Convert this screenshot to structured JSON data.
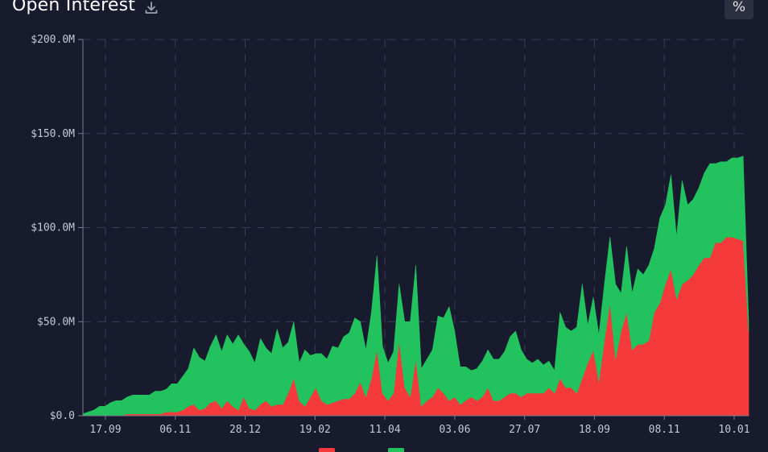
{
  "header": {
    "title": "Open Interest",
    "download_icon": "download-icon",
    "percent_button_label": "%"
  },
  "colors": {
    "background": "#181b2e",
    "short": "#f43a3a",
    "long": "#22c35e",
    "grid": "#3a3d52",
    "text": "#c5c8d6"
  },
  "chart_data": {
    "type": "area",
    "stacked": true,
    "title": "Open Interest",
    "xlabel": "",
    "ylabel": "",
    "ylim": [
      0,
      200
    ],
    "unit": "$M",
    "grid": true,
    "y_ticks": [
      {
        "value": 0,
        "label": "$0.0"
      },
      {
        "value": 50,
        "label": "$50.0M"
      },
      {
        "value": 100,
        "label": "$100.0M"
      },
      {
        "value": 150,
        "label": "$150.0M"
      },
      {
        "value": 200,
        "label": "$200.0M"
      }
    ],
    "x_ticks": [
      "17.09",
      "06.11",
      "28.12",
      "19.02",
      "11.04",
      "03.06",
      "27.07",
      "18.09",
      "08.11",
      "10.01"
    ],
    "series": [
      {
        "color": "#f43a3a",
        "values": [
          0,
          0,
          0,
          0,
          0,
          0,
          0,
          0,
          1,
          1,
          1,
          1,
          1,
          1,
          1,
          2,
          2,
          2,
          3,
          5,
          6,
          3,
          4,
          7,
          8,
          4,
          8,
          5,
          3,
          10,
          4,
          3,
          6,
          8,
          5,
          6,
          6,
          12,
          20,
          8,
          5,
          10,
          15,
          8,
          6,
          7,
          8,
          9,
          9,
          12,
          18,
          10,
          20,
          35,
          12,
          8,
          12,
          40,
          15,
          10,
          30,
          5,
          8,
          10,
          15,
          12,
          8,
          10,
          6,
          8,
          10,
          8,
          10,
          15,
          8,
          8,
          10,
          12,
          12,
          10,
          12,
          12,
          12,
          12,
          15,
          12,
          20,
          15,
          15,
          12,
          20,
          28,
          35,
          18,
          40,
          60,
          30,
          45,
          55,
          35,
          38,
          38,
          40,
          55,
          60,
          70,
          78,
          62,
          70,
          72,
          75,
          80,
          84,
          84,
          92,
          92,
          95,
          95,
          94,
          93,
          45
        ]
      },
      {
        "color": "#22c35e",
        "values": [
          1,
          2,
          3,
          5,
          5,
          7,
          8,
          8,
          9,
          10,
          10,
          10,
          10,
          12,
          12,
          12,
          15,
          15,
          18,
          20,
          30,
          28,
          25,
          30,
          35,
          30,
          35,
          33,
          40,
          28,
          30,
          25,
          35,
          28,
          28,
          40,
          30,
          27,
          30,
          20,
          30,
          22,
          18,
          25,
          24,
          30,
          28,
          33,
          35,
          40,
          32,
          25,
          35,
          50,
          25,
          20,
          22,
          30,
          35,
          40,
          50,
          20,
          22,
          25,
          38,
          40,
          50,
          35,
          20,
          18,
          14,
          17,
          19,
          20,
          22,
          22,
          24,
          30,
          33,
          25,
          18,
          16,
          18,
          15,
          14,
          12,
          35,
          32,
          30,
          35,
          50,
          20,
          28,
          25,
          30,
          35,
          40,
          20,
          35,
          30,
          40,
          37,
          40,
          34,
          45,
          42,
          50,
          33,
          55,
          40,
          40,
          41,
          45,
          50,
          42,
          43,
          40,
          42,
          43,
          45,
          5
        ]
      }
    ]
  }
}
